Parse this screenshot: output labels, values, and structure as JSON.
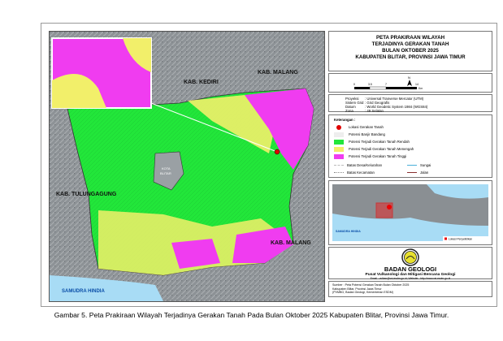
{
  "map": {
    "labels": {
      "kediri": "KAB. KEDIRI",
      "malang_north": "KAB. MALANG",
      "tulungagung": "KAB. TULUNGAGUNG",
      "malang_south": "KAB. MALANG",
      "sea": "SAMUDRA HINDIA",
      "kota_blitar_1": "KOTA",
      "kota_blitar_2": "BLITAR"
    },
    "colors": {
      "low": "#22e63a",
      "medium": "#f2ef6a",
      "high": "#f03cf0",
      "sea": "#a8dcf5",
      "hillshade": "#8a8f93",
      "location": "#e00000"
    }
  },
  "title": {
    "line1": "PETA PRAKIRAAN WILAYAH",
    "line2": "TERJADINYA GERAKAN TANAH",
    "line3": "BULAN OKTOBER 2025",
    "line4": "KABUPATEN BLITAR, PROVINSI JAWA TIMUR"
  },
  "scale": {
    "north": "N",
    "ticks": [
      "0",
      "3.5",
      "7",
      "14"
    ],
    "unit": "Km"
  },
  "projection": [
    {
      "k": "Proyeksi",
      "v": ": Universal Tranverse Mercator (UTM)"
    },
    {
      "k": "Sistem Grid",
      "v": ": Grid Geografis"
    },
    {
      "k": "Datum",
      "v": ": World Geodetic System 1984 (WGS84)"
    },
    {
      "k": "Zona",
      "v": ": 49 Selatan"
    }
  ],
  "legend": {
    "heading": "Keterangan :",
    "items": [
      {
        "label": "Lokasi Gerakan Tanah",
        "color": "#e00000"
      },
      {
        "label": "Potensi Banjir Bandang",
        "color": "#eeeeee"
      },
      {
        "label": "Potensi Terjadi Gerakan Tanah Rendah",
        "color": "#22e63a"
      },
      {
        "label": "Potensi Terjadi Gerakan Tanah Menengah",
        "color": "#f2ef6a"
      },
      {
        "label": "Potensi Terjadi Gerakan Tanah Tinggi",
        "color": "#f03cf0"
      }
    ],
    "lines": [
      {
        "label": "Batas Desa/Kelurahan"
      },
      {
        "label": "Sungai"
      },
      {
        "label": "Batas Kecamatan"
      },
      {
        "label": "Jalan"
      }
    ]
  },
  "inset": {
    "sea": "SAMUDRA HINDIA",
    "legend": "Lokasi Penyelidikan"
  },
  "logo": {
    "org": "BADAN GEOLOGI",
    "sub": "Pusat Vulkanologi dan Mitigasi Bencana Geologi",
    "contact": "Email : vulkan@vsi.esdm.go.id; Website : http://www.vsi.esdm.go.id"
  },
  "source": {
    "l1": "Sumber : Peta Potensi Gerakan Tanah Bulan Oktober 2025",
    "l2": "Kabupaten Blitar, Provinsi Jawa Timur",
    "l3": "(PVMBG, Badan Geologi, Kementerian ESDM)"
  },
  "caption": "Gambar 5. Peta Prakiraan Wilayah Terjadinya Gerakan Tanah Pada Bulan Oktober 2025 Kabupaten Blitar, Provinsi Jawa Timur."
}
